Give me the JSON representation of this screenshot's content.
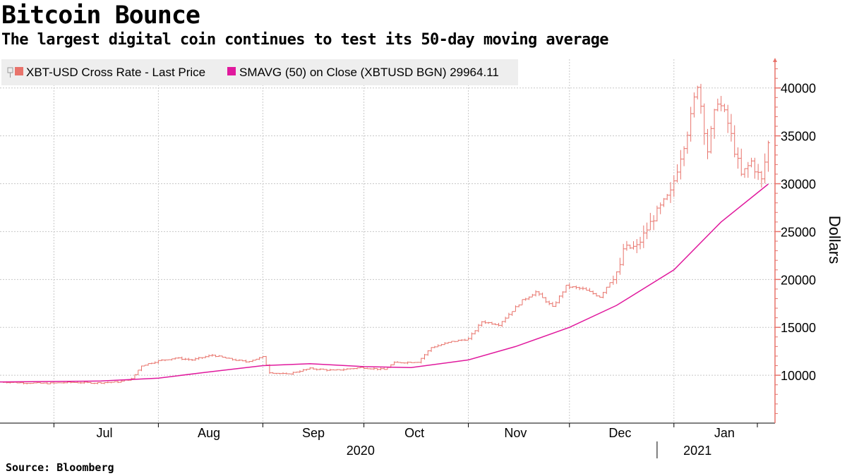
{
  "title": "Bitcoin Bounce",
  "subtitle": "The largest digital coin continues to test its 50-day moving average",
  "source": "Source: Bloomberg",
  "colors": {
    "price": "#e8736b",
    "sma": "#e0199d",
    "axis": "#e8736b",
    "grid": "#c8c8c8",
    "legend_bg": "#eeeeee"
  },
  "chart_data": {
    "type": "line",
    "chart_style": "ohlc-bars-with-moving-average",
    "ylabel": "Dollars",
    "ylim": [
      5000,
      43000
    ],
    "yticks": [
      10000,
      15000,
      20000,
      25000,
      30000,
      35000,
      40000
    ],
    "ytick_labels": [
      "10000",
      "15000",
      "20000",
      "25000",
      "30000",
      "35000",
      "40000"
    ],
    "x_range": [
      "2020-06-15",
      "2021-01-31"
    ],
    "month_ticks": [
      "2020-07-01",
      "2020-08-01",
      "2020-09-01",
      "2020-10-01",
      "2020-11-01",
      "2020-12-01",
      "2021-01-01"
    ],
    "month_labels": [
      {
        "date": "2020-07-16",
        "label": "Jul"
      },
      {
        "date": "2020-08-16",
        "label": "Aug"
      },
      {
        "date": "2020-09-16",
        "label": "Sep"
      },
      {
        "date": "2020-10-16",
        "label": "Oct"
      },
      {
        "date": "2020-11-15",
        "label": "Nov"
      },
      {
        "date": "2020-12-16",
        "label": "Dec"
      },
      {
        "date": "2021-01-16",
        "label": "Jan"
      }
    ],
    "year_labels": [
      {
        "date": "2020-09-30",
        "label": "2020"
      },
      {
        "date": "2021-01-08",
        "label": "2021"
      }
    ],
    "year_divider": "2020-12-27",
    "legend_position": "top-left",
    "grid": true,
    "series": [
      {
        "name": "XBT-USD Cross Rate - Last Price",
        "style": "ohlc",
        "close_points": [
          [
            "2020-06-15",
            9300
          ],
          [
            "2020-06-22",
            9200
          ],
          [
            "2020-06-29",
            9150
          ],
          [
            "2020-07-06",
            9250
          ],
          [
            "2020-07-13",
            9200
          ],
          [
            "2020-07-20",
            9300
          ],
          [
            "2020-07-24",
            9600
          ],
          [
            "2020-07-27",
            11000
          ],
          [
            "2020-08-01",
            11500
          ],
          [
            "2020-08-06",
            11800
          ],
          [
            "2020-08-11",
            11600
          ],
          [
            "2020-08-17",
            12100
          ],
          [
            "2020-08-22",
            11700
          ],
          [
            "2020-08-27",
            11400
          ],
          [
            "2020-09-01",
            11900
          ],
          [
            "2020-09-03",
            10300
          ],
          [
            "2020-09-08",
            10100
          ],
          [
            "2020-09-15",
            10700
          ],
          [
            "2020-09-22",
            10500
          ],
          [
            "2020-09-30",
            10800
          ],
          [
            "2020-10-07",
            10600
          ],
          [
            "2020-10-10",
            11300
          ],
          [
            "2020-10-17",
            11400
          ],
          [
            "2020-10-21",
            12900
          ],
          [
            "2020-10-27",
            13500
          ],
          [
            "2020-11-01",
            13800
          ],
          [
            "2020-11-05",
            15600
          ],
          [
            "2020-11-10",
            15300
          ],
          [
            "2020-11-17",
            17800
          ],
          [
            "2020-11-21",
            18700
          ],
          [
            "2020-11-26",
            17100
          ],
          [
            "2020-11-30",
            19300
          ],
          [
            "2020-12-05",
            19000
          ],
          [
            "2020-12-10",
            18200
          ],
          [
            "2020-12-16",
            21300
          ],
          [
            "2020-12-17",
            23200
          ],
          [
            "2020-12-21",
            23400
          ],
          [
            "2020-12-26",
            26500
          ],
          [
            "2020-12-31",
            29000
          ],
          [
            "2021-01-03",
            33000
          ],
          [
            "2021-01-06",
            36800
          ],
          [
            "2021-01-08",
            40600
          ],
          [
            "2021-01-11",
            33500
          ],
          [
            "2021-01-14",
            38900
          ],
          [
            "2021-01-17",
            36300
          ],
          [
            "2021-01-21",
            30800
          ],
          [
            "2021-01-24",
            32300
          ],
          [
            "2021-01-27",
            30300
          ],
          [
            "2021-01-29",
            34200
          ]
        ]
      },
      {
        "name": "SMAVG (50)  on Close (XBTUSD BGN) 29964.11",
        "style": "line",
        "points": [
          [
            "2020-06-15",
            9300
          ],
          [
            "2020-07-15",
            9400
          ],
          [
            "2020-08-01",
            9700
          ],
          [
            "2020-08-15",
            10300
          ],
          [
            "2020-09-01",
            11000
          ],
          [
            "2020-09-15",
            11200
          ],
          [
            "2020-10-01",
            10900
          ],
          [
            "2020-10-15",
            10800
          ],
          [
            "2020-11-01",
            11600
          ],
          [
            "2020-11-15",
            13000
          ],
          [
            "2020-12-01",
            15000
          ],
          [
            "2020-12-15",
            17300
          ],
          [
            "2021-01-01",
            21000
          ],
          [
            "2021-01-15",
            26000
          ],
          [
            "2021-01-29",
            29964
          ]
        ]
      }
    ]
  }
}
